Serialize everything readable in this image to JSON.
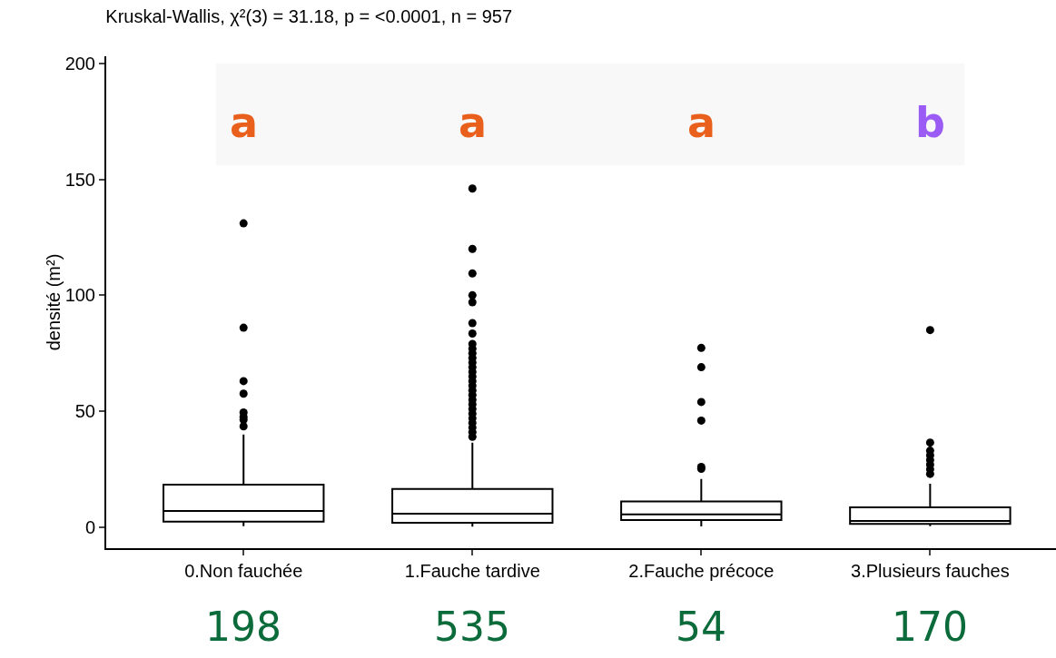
{
  "chart_data": {
    "type": "box",
    "title": "Kruskal-Wallis, χ²(3) = 31.18, p = <0.0001, n = 957",
    "ylabel": "densité (m²)",
    "categories": [
      "0.Non fauchée",
      "1.Fauche tardive",
      "2.Fauche précoce",
      "3.Plusieurs fauches"
    ],
    "boxes": [
      {
        "low": 0.5,
        "q1": 2.4,
        "median": 7,
        "q3": 18.4,
        "high": 40,
        "outliers": [
          131,
          86,
          63,
          57.6,
          49.5,
          47.5,
          46.3,
          43.5
        ]
      },
      {
        "low": 0.3,
        "q1": 2,
        "median": 5.9,
        "q3": 16.5,
        "high": 36.5,
        "outliers": [
          146,
          120,
          109.4,
          100,
          97,
          88,
          83.5,
          79,
          77,
          75,
          73,
          71,
          69,
          67,
          65,
          63,
          61,
          59,
          57,
          55,
          53,
          51,
          49,
          47,
          45,
          43,
          41,
          39
        ]
      },
      {
        "low": 0.4,
        "q1": 3.1,
        "median": 5.6,
        "q3": 11.1,
        "high": 20.8,
        "outliers": [
          77.3,
          69,
          54,
          46,
          26,
          25.2
        ]
      },
      {
        "low": 0.5,
        "q1": 1.5,
        "median": 2.7,
        "q3": 8.6,
        "high": 18.8,
        "outliers": [
          85,
          36.5,
          33,
          31,
          29,
          27,
          25,
          23
        ]
      }
    ],
    "color": "#000000",
    "ylim": [
      -9,
      203
    ],
    "yticks": [
      0,
      50,
      100,
      150,
      200
    ],
    "grid": false,
    "bands": [
      {
        "axis": "y",
        "from": 156,
        "to": 200,
        "color": "#f8f8f8"
      }
    ],
    "annotations": [
      "a",
      "a",
      "a",
      "b",
      "198",
      "535",
      "54",
      "170"
    ]
  }
}
